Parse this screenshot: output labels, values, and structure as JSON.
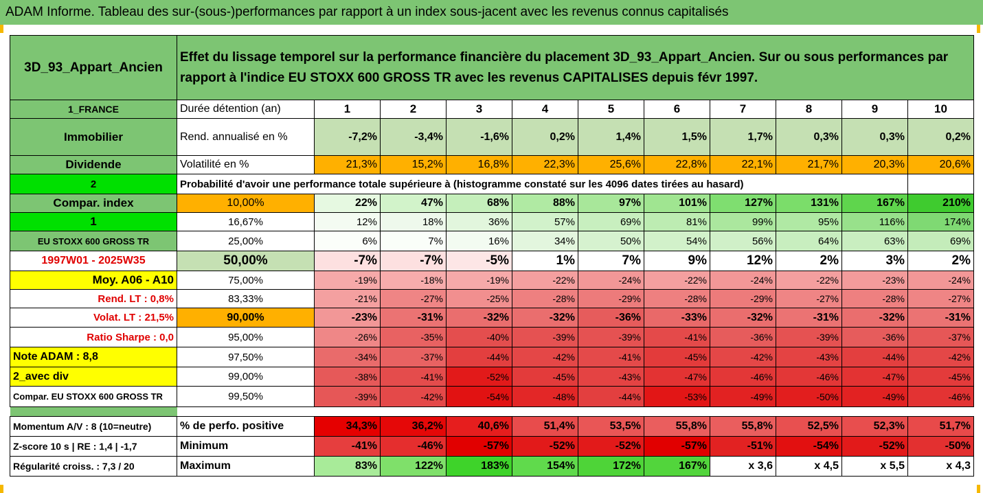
{
  "title": "ADAM Informe. Tableau des sur-(sous-)performances par rapport à un index sous-jacent avec les revenus connus capitalisés",
  "header": {
    "asset": "3D_93_Appart_Ancien",
    "description": "Effet du lissage temporel sur la performance financière du placement 3D_93_Appart_Ancien. Sur ou sous performances par rapport à l'indice EU STOXX 600 GROSS TR avec les revenus CAPITALISES depuis févr 1997."
  },
  "years": [
    "1",
    "2",
    "3",
    "4",
    "5",
    "6",
    "7",
    "8",
    "9",
    "10"
  ],
  "rows": {
    "duree": {
      "side": "1_FRANCE",
      "label": "Durée détention (an)"
    },
    "rend": {
      "side": "Immobilier",
      "label": "Rend. annualisé en %",
      "values": [
        "-7,2%",
        "-3,4%",
        "-1,6%",
        "0,2%",
        "1,4%",
        "1,5%",
        "1,7%",
        "0,3%",
        "0,3%",
        "0,2%"
      ]
    },
    "vol": {
      "side": "Dividende",
      "label": "Volatilité en %",
      "values": [
        "21,3%",
        "15,2%",
        "16,8%",
        "22,3%",
        "25,6%",
        "22,8%",
        "22,1%",
        "21,7%",
        "20,3%",
        "20,6%"
      ]
    },
    "prob": {
      "side": "2",
      "label": "Probabilité d'avoir une performance totale supérieure à (histogramme constaté sur les 4096 dates tirées au hasard)"
    }
  },
  "percentiles": [
    {
      "side": "Compar. index",
      "p": "10,00%",
      "values": [
        "22%",
        "47%",
        "68%",
        "88%",
        "97%",
        "101%",
        "127%",
        "131%",
        "167%",
        "210%"
      ]
    },
    {
      "side": "1",
      "p": "16,67%",
      "values": [
        "12%",
        "18%",
        "36%",
        "57%",
        "69%",
        "81%",
        "99%",
        "95%",
        "116%",
        "174%"
      ]
    },
    {
      "side": "EU STOXX 600 GROSS TR",
      "p": "25,00%",
      "values": [
        "6%",
        "7%",
        "16%",
        "34%",
        "50%",
        "54%",
        "56%",
        "64%",
        "63%",
        "69%"
      ]
    },
    {
      "side": "1997W01 - 2025W35",
      "p": "50,00%",
      "values": [
        "-7%",
        "-7%",
        "-5%",
        "1%",
        "7%",
        "9%",
        "12%",
        "2%",
        "3%",
        "2%"
      ]
    },
    {
      "side": "Moy. A06 - A10",
      "p": "75,00%",
      "values": [
        "-19%",
        "-18%",
        "-19%",
        "-22%",
        "-24%",
        "-22%",
        "-24%",
        "-22%",
        "-23%",
        "-24%"
      ]
    },
    {
      "side": "Rend. LT :   0,8%",
      "p": "83,33%",
      "values": [
        "-21%",
        "-27%",
        "-25%",
        "-28%",
        "-29%",
        "-28%",
        "-29%",
        "-27%",
        "-28%",
        "-27%"
      ]
    },
    {
      "side": "Volat. LT :   21,5%",
      "p": "90,00%",
      "values": [
        "-23%",
        "-31%",
        "-32%",
        "-32%",
        "-36%",
        "-33%",
        "-32%",
        "-31%",
        "-32%",
        "-31%"
      ]
    },
    {
      "side": "Ratio Sharpe :   0,0",
      "p": "95,00%",
      "values": [
        "-26%",
        "-35%",
        "-40%",
        "-39%",
        "-39%",
        "-41%",
        "-36%",
        "-39%",
        "-36%",
        "-37%"
      ]
    },
    {
      "side": "Note ADAM : 8,8",
      "p": "97,50%",
      "values": [
        "-34%",
        "-37%",
        "-44%",
        "-42%",
        "-41%",
        "-45%",
        "-42%",
        "-43%",
        "-44%",
        "-42%"
      ]
    },
    {
      "side": "2_avec div",
      "p": "99,00%",
      "values": [
        "-38%",
        "-41%",
        "-52%",
        "-45%",
        "-43%",
        "-47%",
        "-46%",
        "-46%",
        "-47%",
        "-45%"
      ]
    },
    {
      "side": "Compar. EU STOXX 600 GROSS TR",
      "p": "99,50%",
      "values": [
        "-39%",
        "-42%",
        "-54%",
        "-48%",
        "-44%",
        "-53%",
        "-49%",
        "-50%",
        "-49%",
        "-46%"
      ]
    }
  ],
  "stats": [
    {
      "side": "Momentum A/V : 8 (10=neutre)",
      "label": "% de perfo. positive",
      "values": [
        "34,3%",
        "36,2%",
        "40,6%",
        "51,4%",
        "53,5%",
        "55,8%",
        "55,8%",
        "52,5%",
        "52,3%",
        "51,7%"
      ]
    },
    {
      "side": "Z-score 10 s  |  RE : 1,4  |  -1,7",
      "label": "Minimum",
      "values": [
        "-41%",
        "-46%",
        "-57%",
        "-52%",
        "-52%",
        "-57%",
        "-51%",
        "-54%",
        "-52%",
        "-50%"
      ]
    },
    {
      "side": "Régularité croiss. : 7,3 / 20",
      "label": "Maximum",
      "values": [
        "83%",
        "122%",
        "183%",
        "154%",
        "172%",
        "167%",
        "x 3,6",
        "x 4,5",
        "x 5,5",
        "x 4,3"
      ]
    }
  ],
  "colors": {
    "header_green": "#7dc573",
    "orange": "#ffb000",
    "bright_green": "#00e000",
    "yellow": "#ffff00",
    "red_text": "#e00000"
  },
  "cell_colors": {
    "rend": [
      "#c5e0b3",
      "#c5e0b3",
      "#c5e0b3",
      "#c5e0b3",
      "#c5e0b3",
      "#c5e0b3",
      "#c5e0b3",
      "#c5e0b3",
      "#c5e0b3",
      "#c5e0b3"
    ],
    "vol": [
      "#ffb000",
      "#ffb000",
      "#ffb000",
      "#ffb000",
      "#ffb000",
      "#ffb000",
      "#ffb000",
      "#ffb000",
      "#ffb000",
      "#ffb000"
    ],
    "percentiles": [
      [
        "#e6f9e1",
        "#d2f3ca",
        "#c5efbb",
        "#b0eaa3",
        "#a8e79a",
        "#a0e591",
        "#7fde70",
        "#7bdd6a",
        "#5fd54d",
        "#3fcb2f"
      ],
      [
        "#f4fbf2",
        "#eef9ec",
        "#e2f6dd",
        "#d2f2cb",
        "#c8efbf",
        "#bdecb2",
        "#abe79e",
        "#b0e9a4",
        "#98e18b",
        "#7fd973"
      ],
      [
        "#fbfefa",
        "#fafef9",
        "#f3fbf1",
        "#e3f6de",
        "#d6f2cf",
        "#d2f1ca",
        "#d0f0c8",
        "#c8eebf",
        "#c9eec0",
        "#c4ecba"
      ],
      [
        "#fde0e0",
        "#fde0e0",
        "#fde6e6",
        "#ffffff",
        "#ffffff",
        "#ffffff",
        "#ffffff",
        "#ffffff",
        "#ffffff",
        "#ffffff"
      ],
      [
        "#f6a9a9",
        "#f7acac",
        "#f6a9a9",
        "#f49f9f",
        "#f29797",
        "#f49f9f",
        "#f29797",
        "#f49f9f",
        "#f39b9b",
        "#f29797"
      ],
      [
        "#f4a0a0",
        "#ef8585",
        "#f18f8f",
        "#ee8080",
        "#ed7b7b",
        "#ee8080",
        "#ed7b7b",
        "#ef8585",
        "#ee8080",
        "#ef8585"
      ],
      [
        "#f29797",
        "#eb7373",
        "#ea6e6e",
        "#ea6e6e",
        "#e65c5c",
        "#e96969",
        "#ea6e6e",
        "#eb7373",
        "#ea6e6e",
        "#eb7373"
      ],
      [
        "#ef8787",
        "#e86262",
        "#e44e4e",
        "#e55252",
        "#e55252",
        "#e44a4a",
        "#e65c5c",
        "#e55252",
        "#e65c5c",
        "#e65757"
      ],
      [
        "#e96b6b",
        "#e86262",
        "#e33f3f",
        "#e44747",
        "#e44a4a",
        "#e33b3b",
        "#e44747",
        "#e44343",
        "#e33f3f",
        "#e44747"
      ],
      [
        "#e65959",
        "#e44c4c",
        "#e21a1a",
        "#e33b3b",
        "#e44343",
        "#e33333",
        "#e33737",
        "#e33737",
        "#e33333",
        "#e33b3b"
      ],
      [
        "#e65757",
        "#e44949",
        "#e11212",
        "#e32727",
        "#e33f3f",
        "#e21616",
        "#e22222",
        "#e21e1e",
        "#e22222",
        "#e33333"
      ]
    ],
    "stats": [
      [
        "#e50000",
        "#e50808",
        "#e61e1e",
        "#e84c4c",
        "#e95656",
        "#ea5e5e",
        "#ea5e5e",
        "#e85050",
        "#e84e4e",
        "#e84a4a"
      ],
      [
        "#e63e3e",
        "#e52e2e",
        "#e10000",
        "#e21a1a",
        "#e21a1a",
        "#e10000",
        "#e22222",
        "#e21010",
        "#e21a1a",
        "#e33030"
      ],
      [
        "#a8eb99",
        "#7fe06a",
        "#3ed32a",
        "#60da4c",
        "#4ed438",
        "#52d53c",
        "#ffffff",
        "#ffffff",
        "#ffffff",
        "#ffffff"
      ]
    ]
  }
}
